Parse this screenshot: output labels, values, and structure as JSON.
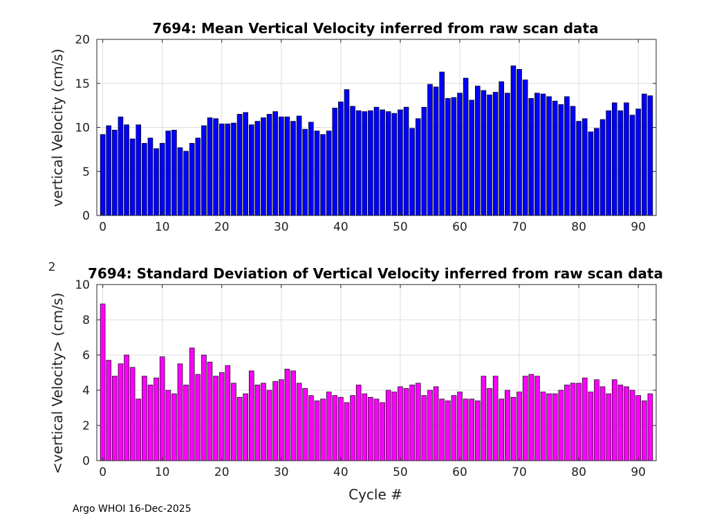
{
  "chart_data": [
    {
      "type": "bar",
      "title": "7694: Mean Vertical Velocity inferred from raw scan data",
      "xlabel": "",
      "ylabel": "vertical Velocity (cm/s)",
      "xlim": [
        -1,
        93
      ],
      "ylim": [
        0,
        20
      ],
      "xticks": [
        0,
        10,
        20,
        30,
        40,
        50,
        60,
        70,
        80,
        90
      ],
      "yticks": [
        0,
        5,
        10,
        15,
        20
      ],
      "grid": true,
      "color": "#0000ff",
      "x_start": 0,
      "values": [
        9.2,
        10.2,
        9.7,
        11.2,
        10.3,
        8.7,
        10.3,
        8.2,
        8.8,
        7.6,
        8.2,
        9.6,
        9.7,
        7.7,
        7.3,
        8.2,
        8.8,
        10.2,
        11.1,
        11.0,
        10.4,
        10.4,
        10.5,
        11.5,
        11.7,
        10.3,
        10.7,
        11.1,
        11.5,
        11.8,
        11.2,
        11.2,
        10.7,
        11.3,
        9.8,
        10.6,
        9.6,
        9.2,
        9.6,
        12.2,
        12.9,
        14.3,
        12.4,
        11.9,
        11.8,
        11.9,
        12.3,
        12.0,
        11.8,
        11.6,
        12.0,
        12.3,
        9.9,
        11.0,
        12.3,
        14.9,
        14.6,
        16.3,
        13.3,
        13.4,
        13.9,
        15.6,
        13.1,
        14.7,
        14.2,
        13.7,
        14.0,
        15.2,
        13.9,
        17.0,
        16.6,
        15.4,
        13.3,
        13.9,
        13.8,
        13.5,
        13.0,
        12.6,
        13.5,
        12.4,
        10.7,
        11.0,
        9.5,
        9.9,
        10.9,
        11.9,
        12.8,
        11.9,
        12.8,
        11.4,
        12.1,
        13.8,
        13.6
      ]
    },
    {
      "type": "bar",
      "title": "7694: Standard Deviation of Vertical Velocity inferred from raw scan data",
      "xlabel": "Cycle #",
      "ylabel": "<vertical Velocity> (cm/s)",
      "ylabel_superscript": "2",
      "xlim": [
        -1,
        93
      ],
      "ylim": [
        0,
        10
      ],
      "xticks": [
        0,
        10,
        20,
        30,
        40,
        50,
        60,
        70,
        80,
        90
      ],
      "yticks": [
        0,
        2,
        4,
        6,
        8,
        10
      ],
      "grid": true,
      "color": "#ff00ff",
      "x_start": 0,
      "values": [
        8.9,
        5.7,
        4.8,
        5.5,
        6.0,
        5.3,
        3.5,
        4.8,
        4.3,
        4.7,
        5.9,
        4.0,
        3.8,
        5.5,
        4.3,
        6.4,
        4.9,
        6.0,
        5.6,
        4.8,
        5.0,
        5.4,
        4.4,
        3.6,
        3.8,
        5.1,
        4.3,
        4.4,
        4.0,
        4.5,
        4.6,
        5.2,
        5.1,
        4.4,
        4.1,
        3.7,
        3.4,
        3.5,
        3.9,
        3.7,
        3.6,
        3.3,
        3.7,
        4.3,
        3.8,
        3.6,
        3.5,
        3.3,
        4.0,
        3.9,
        4.2,
        4.1,
        4.3,
        4.4,
        3.7,
        4.0,
        4.2,
        3.5,
        3.4,
        3.7,
        3.9,
        3.5,
        3.5,
        3.4,
        4.8,
        4.1,
        4.8,
        3.5,
        4.0,
        3.6,
        3.9,
        4.8,
        4.9,
        4.8,
        3.9,
        3.8,
        3.8,
        4.0,
        4.3,
        4.4,
        4.4,
        4.7,
        3.9,
        4.6,
        4.2,
        3.8,
        4.6,
        4.3,
        4.2,
        4.0,
        3.7,
        3.4,
        3.8
      ]
    }
  ],
  "footer": "Argo WHOI 16-Dec-2025"
}
